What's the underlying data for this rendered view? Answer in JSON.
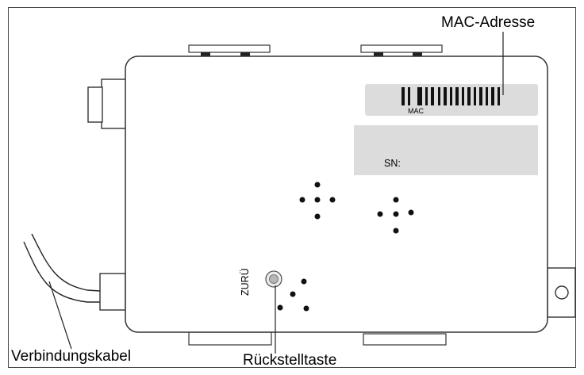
{
  "labels": {
    "mac_address": "MAC-Adresse",
    "mac": "MAC",
    "serial": "SN:",
    "reset_short": "ZURÜ",
    "reset_button": "Rückstelltaste",
    "cable": "Verbindungskabel"
  }
}
